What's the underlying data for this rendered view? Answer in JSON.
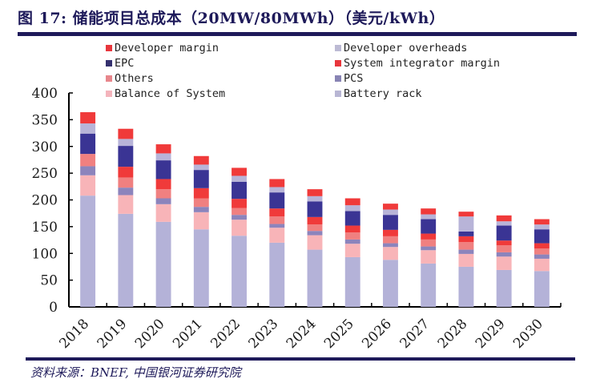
{
  "header": {
    "title": "图 17: 储能项目总成本（20MW/80MWh）（美元/kWh）"
  },
  "footer": {
    "source": "资料来源：BNEF, 中国银河证券研究院"
  },
  "chart_data": {
    "type": "bar",
    "stacked": true,
    "title": "储能项目总成本（20MW/80MWh）（美元/kWh）",
    "xlabel": "",
    "ylabel": "",
    "ylim": [
      0,
      400
    ],
    "yticks": [
      0,
      50,
      100,
      150,
      200,
      250,
      300,
      350,
      400
    ],
    "grid": false,
    "legend_position": "top",
    "categories": [
      "2018",
      "2019",
      "2020",
      "2021",
      "2022",
      "2023",
      "2024",
      "2025",
      "2026",
      "2027",
      "2028",
      "2029",
      "2030"
    ],
    "series": [
      {
        "name": "Battery rack",
        "color": "#b4b2d8",
        "values": [
          208,
          174,
          159,
          145,
          133,
          120,
          107,
          93,
          88,
          81,
          75,
          69,
          67
        ]
      },
      {
        "name": "Balance of System",
        "color": "#f8b4b8",
        "values": [
          38,
          35,
          33,
          32,
          30,
          28,
          27,
          25,
          24,
          25,
          24,
          25,
          23
        ]
      },
      {
        "name": "PCS",
        "color": "#8c84bc",
        "values": [
          17,
          14,
          11,
          10,
          9,
          7,
          8,
          8,
          7,
          7,
          8,
          8,
          8
        ]
      },
      {
        "name": "Others",
        "color": "#f08080",
        "values": [
          23,
          19,
          17,
          16,
          13,
          14,
          12,
          13,
          13,
          13,
          14,
          13,
          11
        ]
      },
      {
        "name": "System integrator margin",
        "color": "#f03a3a",
        "values": [
          0,
          20,
          19,
          19,
          17,
          15,
          14,
          13,
          12,
          11,
          11,
          9,
          10
        ]
      },
      {
        "name": "EPC",
        "color": "#3a3494",
        "values": [
          38,
          39,
          35,
          34,
          32,
          30,
          29,
          27,
          28,
          27,
          9,
          28,
          26
        ]
      },
      {
        "name": "Developer overheads",
        "color": "#b8b4d8",
        "values": [
          19,
          13,
          13,
          10,
          11,
          10,
          10,
          11,
          10,
          9,
          28,
          8,
          9
        ]
      },
      {
        "name": "Developer margin",
        "color": "#f03a3a",
        "values": [
          21,
          19,
          17,
          16,
          15,
          15,
          13,
          13,
          11,
          11,
          9,
          11,
          10
        ]
      }
    ],
    "legend": [
      {
        "name": "Developer margin",
        "color": "#e8363c"
      },
      {
        "name": "Developer overheads",
        "color": "#bcbad4"
      },
      {
        "name": "EPC",
        "color": "#34306e"
      },
      {
        "name": "System integrator margin",
        "color": "#e8363c"
      },
      {
        "name": "Others",
        "color": "#e8868c"
      },
      {
        "name": "PCS",
        "color": "#8884b4"
      },
      {
        "name": "Balance of System",
        "color": "#f4b4bc"
      },
      {
        "name": "Battery rack",
        "color": "#b8b6d4"
      }
    ]
  }
}
